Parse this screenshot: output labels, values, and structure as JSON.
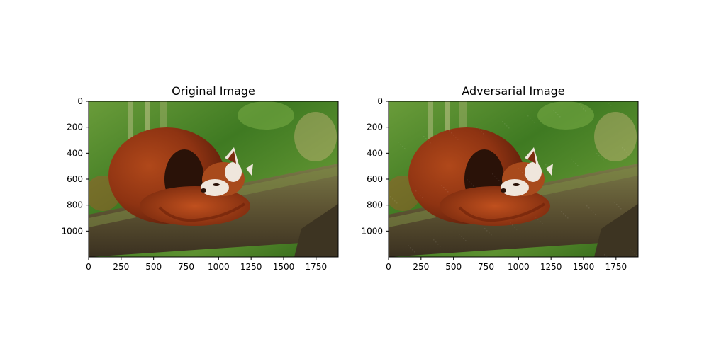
{
  "panels": [
    {
      "title": "Original Image",
      "x_ticks": [
        "0",
        "250",
        "500",
        "750",
        "1000",
        "1250",
        "1500",
        "1750"
      ],
      "x_tick_values": [
        0,
        250,
        500,
        750,
        1000,
        1250,
        1500,
        1750
      ],
      "y_ticks": [
        "0",
        "200",
        "400",
        "600",
        "800",
        "1000"
      ],
      "y_tick_values": [
        0,
        200,
        400,
        600,
        800,
        1000
      ],
      "x_range": [
        0,
        1920
      ],
      "y_range": [
        0,
        1200
      ]
    },
    {
      "title": "Adversarial Image",
      "x_ticks": [
        "0",
        "250",
        "500",
        "750",
        "1000",
        "1250",
        "1500",
        "1750"
      ],
      "x_tick_values": [
        0,
        250,
        500,
        750,
        1000,
        1250,
        1500,
        1750
      ],
      "y_ticks": [
        "0",
        "200",
        "400",
        "600",
        "800",
        "1000"
      ],
      "y_tick_values": [
        0,
        200,
        400,
        600,
        800,
        1000
      ],
      "x_range": [
        0,
        1920
      ],
      "y_range": [
        0,
        1200
      ]
    }
  ],
  "colors": {
    "background_green": "#4f8a2a",
    "fur_red": "#9a3a14",
    "fur_dark": "#2a1208",
    "face_white": "#efe6dc",
    "branch_brown": "#5e5136",
    "branch_moss": "#6b7a3a"
  }
}
